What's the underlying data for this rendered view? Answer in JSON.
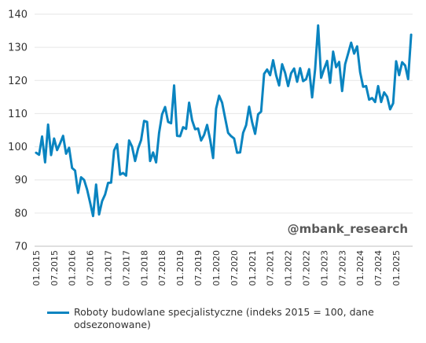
{
  "chart_data": {
    "type": "line",
    "title": "",
    "xlabel": "",
    "ylabel": "",
    "ylim": [
      70,
      140
    ],
    "y_ticks": [
      70,
      80,
      90,
      100,
      110,
      120,
      130,
      140
    ],
    "grid": "horizontal",
    "x_tick_labels": [
      "01.2015",
      "07.2015",
      "01.2016",
      "07.2016",
      "01.2017",
      "07.2017",
      "01.2018",
      "07.2018",
      "01.2019",
      "07.2019",
      "01.2020",
      "07.2020",
      "01.2021",
      "07.2021",
      "01.2022",
      "07.2022",
      "01.2023",
      "07.2023",
      "01.2024",
      "07.2024",
      "01.2025"
    ],
    "x_start": "01.2015",
    "x_end": "09.2025",
    "legend_position": "bottom",
    "color": "#0a84c0",
    "series": [
      {
        "name": "Roboty budowlane specjalistyczne  (indeks 2015 = 100, dane odsezonowane)",
        "values": [
          98.2,
          97.6,
          103.1,
          95.3,
          106.7,
          97.5,
          102.5,
          99.0,
          101.0,
          103.3,
          97.9,
          99.7,
          93.6,
          92.8,
          86.1,
          90.8,
          90.0,
          87.1,
          83.2,
          79.1,
          88.6,
          79.6,
          83.6,
          85.6,
          89.1,
          89.2,
          98.9,
          100.8,
          91.6,
          92.1,
          91.3,
          101.9,
          100.0,
          95.7,
          99.5,
          102.0,
          107.8,
          107.5,
          95.7,
          98.3,
          95.3,
          104.2,
          109.8,
          112.0,
          107.5,
          107.1,
          118.5,
          103.3,
          103.2,
          105.9,
          105.4,
          113.3,
          108.0,
          105.3,
          105.5,
          101.9,
          103.6,
          106.6,
          102.2,
          96.6,
          111.5,
          115.4,
          113.3,
          108.7,
          104.2,
          103.2,
          102.5,
          98.2,
          98.3,
          104.2,
          106.5,
          112.1,
          107.4,
          103.9,
          109.8,
          110.6,
          122.0,
          123.3,
          121.6,
          126.1,
          121.6,
          118.5,
          124.9,
          122.3,
          118.3,
          122.2,
          123.6,
          119.6,
          123.7,
          119.8,
          120.4,
          123.4,
          114.9,
          123.4,
          136.6,
          120.8,
          123.5,
          125.9,
          119.3,
          128.7,
          124.0,
          125.6,
          116.8,
          124.9,
          128.1,
          131.4,
          128.1,
          130.3,
          122.5,
          118.1,
          118.3,
          114.2,
          114.7,
          113.5,
          118.3,
          113.5,
          116.4,
          115.1,
          111.3,
          113.1,
          125.8,
          121.6,
          125.5,
          124.5,
          120.4,
          133.8
        ]
      }
    ],
    "annotation": "@mbank_research"
  }
}
